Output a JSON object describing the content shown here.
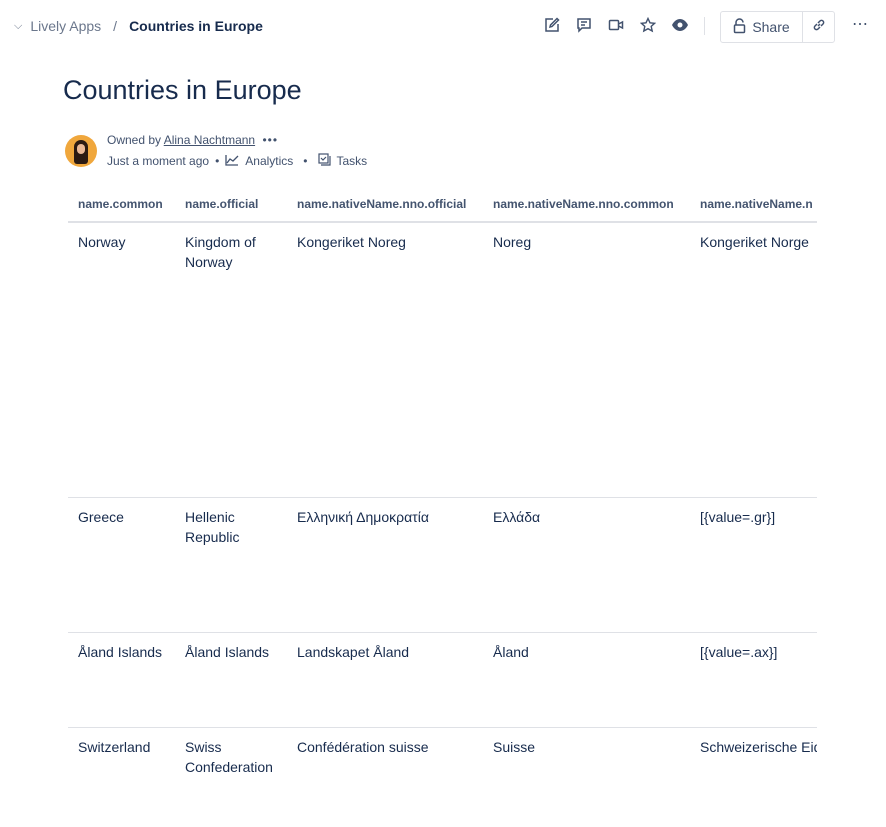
{
  "breadcrumb": {
    "space": "Lively Apps",
    "separator": "/",
    "current": "Countries in Europe"
  },
  "toolbar": {
    "share_label": "Share",
    "icons": [
      "edit-icon",
      "comment-icon",
      "video-icon",
      "star-icon",
      "watch-icon",
      "lock-icon",
      "link-icon",
      "more-icon"
    ]
  },
  "page": {
    "title": "Countries in Europe"
  },
  "byline": {
    "owned_by": "Owned by",
    "owner": "Alina Nachtmann",
    "more": "•••",
    "updated": "Just a moment ago",
    "analytics": "Analytics",
    "tasks": "Tasks",
    "dot": "•"
  },
  "table": {
    "headers": [
      "name.common",
      "name.official",
      "name.nativeName.nno.official",
      "name.nativeName.nno.common",
      "name.nativeName.n"
    ],
    "rows": [
      [
        "Norway",
        "Kingdom of Norway",
        "Kongeriket Noreg",
        "Noreg",
        "Kongeriket Norge"
      ],
      [
        "Greece",
        "Hellenic Republic",
        "Ελληνική Δημοκρατία",
        "Ελλάδα",
        "[{value=.gr}]"
      ],
      [
        "Åland Islands",
        "Åland Islands",
        "Landskapet Åland",
        "Åland",
        "[{value=.ax}]"
      ],
      [
        "Switzerland",
        "Swiss Confederation",
        "Confédération suisse",
        "Suisse",
        "Schweizerische Eidgenossenschaf"
      ]
    ]
  }
}
